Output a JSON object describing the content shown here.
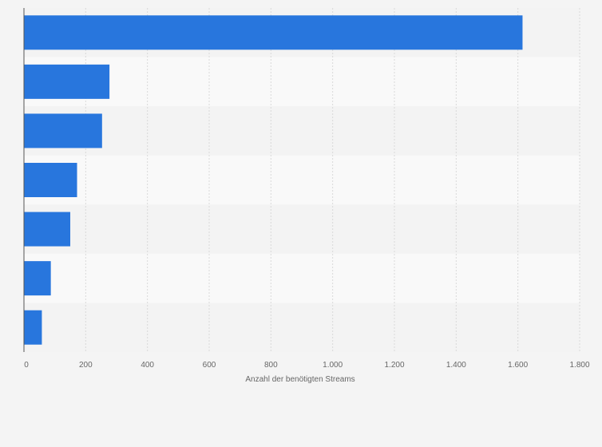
{
  "chart_data": {
    "type": "bar",
    "orientation": "horizontal",
    "categories": [
      "",
      "",
      "",
      "",
      "",
      "",
      ""
    ],
    "values": [
      1615,
      277,
      253,
      172,
      150,
      87,
      58
    ],
    "xlabel": "Anzahl der benötigten Streams",
    "ylabel": "",
    "xlim": [
      0,
      1800
    ],
    "xticks": [
      0,
      200,
      400,
      600,
      800,
      1000,
      1200,
      1400,
      1600,
      1800
    ],
    "xtick_labels": [
      "0",
      "200",
      "400",
      "600",
      "800",
      "1.000",
      "1.200",
      "1.400",
      "1.600",
      "1.800"
    ],
    "grid": "vertical",
    "legend": "none",
    "colors": {
      "bar": "#2876dd",
      "band_light": "#f9f9f9",
      "band_dark": "#f3f3f3",
      "grid": "#d9d9d9",
      "axis": "#555555"
    }
  }
}
